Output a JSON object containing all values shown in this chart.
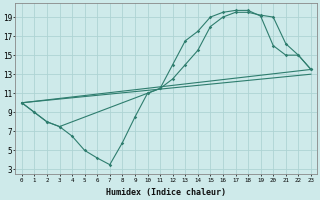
{
  "bg_color": "#ceeaea",
  "grid_color": "#aed4d4",
  "line_color": "#2e7d6e",
  "xlabel": "Humidex (Indice chaleur)",
  "xlim": [
    -0.5,
    23.5
  ],
  "ylim": [
    2.5,
    20.5
  ],
  "yticks": [
    3,
    5,
    7,
    9,
    11,
    13,
    15,
    17,
    19
  ],
  "xticks": [
    0,
    1,
    2,
    3,
    4,
    5,
    6,
    7,
    8,
    9,
    10,
    11,
    12,
    13,
    14,
    15,
    16,
    17,
    18,
    19,
    20,
    21,
    22,
    23
  ],
  "curve1_x": [
    0,
    1,
    2,
    3,
    4,
    5,
    6,
    7,
    8,
    9,
    10,
    11,
    12,
    13,
    14,
    15,
    16,
    17,
    18,
    19,
    20,
    21,
    22,
    23
  ],
  "curve1_y": [
    10.0,
    9.0,
    8.0,
    7.5,
    6.5,
    5.0,
    4.2,
    3.5,
    5.8,
    8.5,
    11.0,
    11.5,
    14.0,
    16.5,
    17.5,
    19.0,
    19.5,
    19.7,
    19.7,
    19.1,
    16.0,
    15.0,
    15.0,
    13.5
  ],
  "curve2_x": [
    0,
    1,
    2,
    3,
    10,
    11,
    12,
    13,
    14,
    15,
    16,
    17,
    18,
    19,
    20,
    21,
    22,
    23
  ],
  "curve2_y": [
    10.0,
    9.0,
    8.0,
    7.5,
    11.0,
    11.5,
    12.5,
    14.0,
    15.5,
    18.0,
    19.0,
    19.5,
    19.5,
    19.2,
    19.0,
    16.2,
    15.0,
    13.5
  ],
  "curve3_x": [
    0,
    23
  ],
  "curve3_y": [
    10.0,
    13.5
  ],
  "curve4_x": [
    0,
    23
  ],
  "curve4_y": [
    10.0,
    13.0
  ]
}
